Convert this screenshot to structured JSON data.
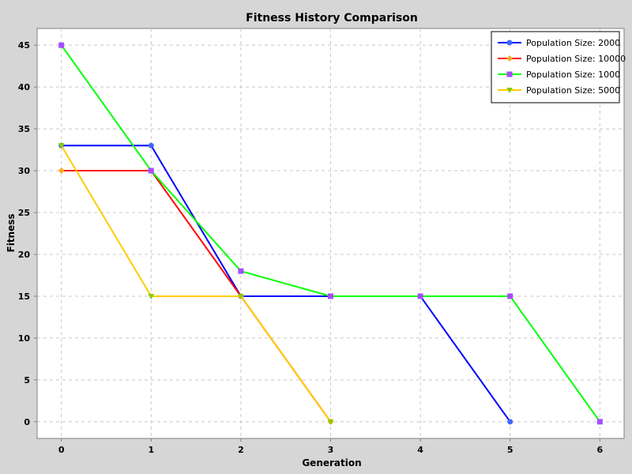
{
  "chart_data": {
    "type": "line",
    "title": "Fitness History Comparison",
    "xlabel": "Generation",
    "ylabel": "Fitness",
    "xlim": [
      -0.27,
      6.27
    ],
    "ylim": [
      -2,
      47
    ],
    "xticks": [
      0,
      1,
      2,
      3,
      4,
      5,
      6
    ],
    "yticks": [
      0,
      5,
      10,
      15,
      20,
      25,
      30,
      35,
      40,
      45
    ],
    "grid": true,
    "legend_position": "top-right",
    "series": [
      {
        "name": "Population Size: 2000",
        "color": "#0000ff",
        "marker": "circle",
        "marker_color": "#3f67ff",
        "x": [
          0,
          1,
          2,
          3,
          4,
          5
        ],
        "y": [
          33,
          33,
          15,
          15,
          15,
          0
        ]
      },
      {
        "name": "Population Size: 10000",
        "color": "#ff0000",
        "marker": "diamond",
        "marker_color": "#ffaa22",
        "x": [
          0,
          1,
          2,
          3
        ],
        "y": [
          30,
          30,
          15,
          0
        ]
      },
      {
        "name": "Population Size: 1000",
        "color": "#00ff00",
        "marker": "square",
        "marker_color": "#a64dff",
        "x": [
          0,
          1,
          2,
          3,
          4,
          5,
          6
        ],
        "y": [
          45,
          30,
          18,
          15,
          15,
          15,
          0
        ]
      },
      {
        "name": "Population Size: 5000",
        "color": "#ffcc00",
        "marker": "triangle-down",
        "marker_color": "#88cc00",
        "x": [
          0,
          1,
          2,
          3
        ],
        "y": [
          33,
          15,
          15,
          0
        ]
      }
    ]
  }
}
